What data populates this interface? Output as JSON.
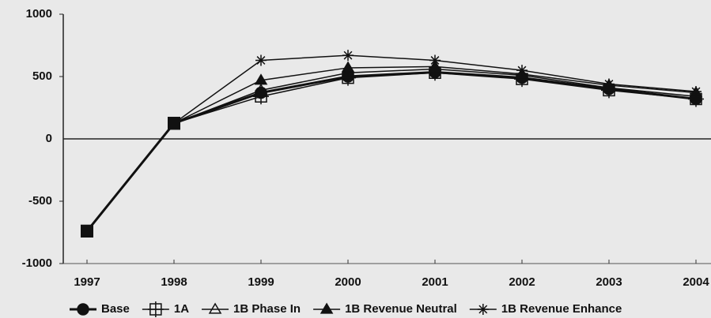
{
  "chart_data": {
    "type": "line",
    "categories": [
      "1997",
      "1998",
      "1999",
      "2000",
      "2001",
      "2002",
      "2003",
      "2004"
    ],
    "series": [
      {
        "name": "Base",
        "color": "#111111",
        "marker": "circle",
        "values": [
          -740,
          125,
          370,
          500,
          535,
          490,
          400,
          320
        ]
      },
      {
        "name": "1A",
        "color": "#111111",
        "marker": "square-open",
        "values": [
          -740,
          125,
          340,
          490,
          530,
          480,
          390,
          320
        ]
      },
      {
        "name": "1B Phase In",
        "color": "#111111",
        "marker": "triangle-open",
        "values": [
          -740,
          125,
          390,
          530,
          560,
          510,
          410,
          340
        ]
      },
      {
        "name": "1B Revenue Neutral",
        "color": "#111111",
        "marker": "triangle",
        "values": [
          -740,
          125,
          470,
          570,
          580,
          520,
          430,
          370
        ]
      },
      {
        "name": "1B Revenue Enhance",
        "color": "#111111",
        "marker": "star",
        "values": [
          -740,
          125,
          630,
          670,
          630,
          550,
          440,
          380
        ]
      }
    ],
    "ylim": [
      -1000,
      1000
    ],
    "yticks": [
      1000,
      500,
      0,
      -500,
      -1000
    ],
    "legend": "bottom"
  }
}
